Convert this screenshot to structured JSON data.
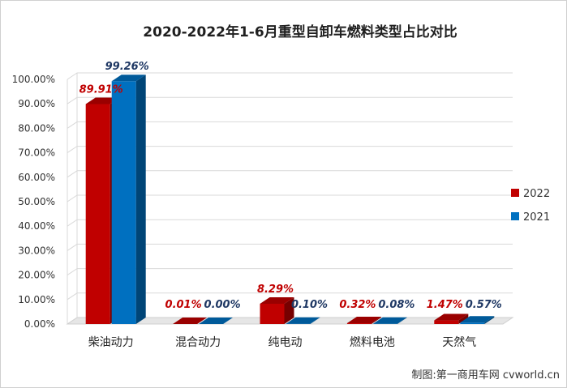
{
  "chart_data": {
    "type": "bar",
    "title": "2020-2022年1-6月重型自卸车燃料类型占比对比",
    "categories": [
      "柴油动力",
      "混合动力",
      "纯电动",
      "燃料电池",
      "天然气"
    ],
    "series": [
      {
        "name": "2022",
        "color": "#c00000",
        "values": [
          89.91,
          0.01,
          8.29,
          0.32,
          1.47
        ],
        "labels": [
          "89.91%",
          "0.01%",
          "8.29%",
          "0.32%",
          "1.47%"
        ]
      },
      {
        "name": "2021",
        "color": "#0070c0",
        "values": [
          99.26,
          0.0,
          0.1,
          0.08,
          0.57
        ],
        "labels": [
          "99.26%",
          "0.00%",
          "0.10%",
          "0.08%",
          "0.57%"
        ]
      }
    ],
    "yticks": [
      "0.00%",
      "10.00%",
      "20.00%",
      "30.00%",
      "40.00%",
      "50.00%",
      "60.00%",
      "70.00%",
      "80.00%",
      "90.00%",
      "100.00%"
    ],
    "ylim": [
      0,
      100
    ],
    "grid": true,
    "legend_position": "right",
    "label_colors": {
      "2022": "#c00000",
      "2021": "#1f3864"
    }
  },
  "credit": "制图:第一商用车网 cvworld.cn"
}
